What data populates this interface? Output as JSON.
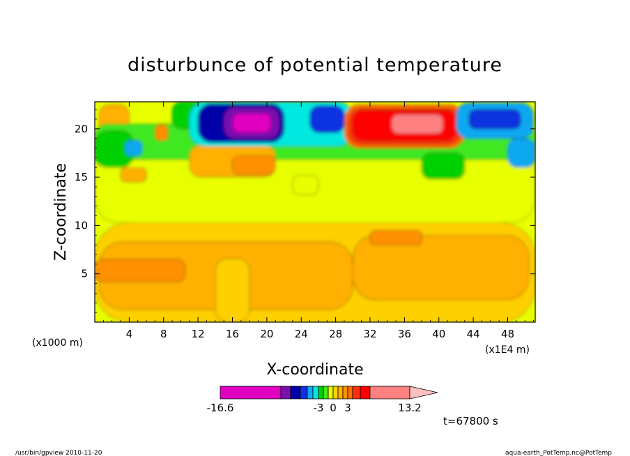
{
  "chart_data": {
    "type": "heatmap",
    "title": "disturbunce of potential temperature",
    "xlabel": "X-coordinate",
    "ylabel": "Z-coordinate",
    "x_unit_note": "(x1000 m)",
    "x_scale_note": "(x1E4 m)",
    "xlim": [
      0,
      51.2
    ],
    "ylim": [
      0,
      22.8
    ],
    "xticks": [
      4,
      8,
      12,
      16,
      20,
      24,
      28,
      32,
      36,
      40,
      44,
      48
    ],
    "yticks": [
      5,
      10,
      15,
      20
    ],
    "time_label": "t=67800 s",
    "colorbar": {
      "levels": [
        -16.6,
        -10.6,
        -8.6,
        -6.6,
        -5,
        -4,
        -3,
        -2,
        -1,
        0,
        1,
        2,
        3,
        4,
        5,
        7,
        13.2
      ],
      "colors": [
        "#e000c0",
        "#7a10b0",
        "#0000a8",
        "#1030e0",
        "#10a8f0",
        "#00e8e0",
        "#00d000",
        "#40e820",
        "#e8ff00",
        "#ffd000",
        "#ffb000",
        "#ff9000",
        "#ff7000",
        "#ff3010",
        "#ff0000",
        "#ff8080"
      ],
      "tick_labels": [
        {
          "value": -16.6,
          "text": "-16.6"
        },
        {
          "value": -3,
          "text": "-3"
        },
        {
          "value": 0,
          "text": "0"
        },
        {
          "value": 3,
          "text": "3"
        },
        {
          "value": 13.2,
          "text": "13.2"
        }
      ],
      "extend": "max",
      "extend_color": "#ffc0c0"
    },
    "field_regions": [
      {
        "v": 0.5,
        "x": [
          0,
          51.2
        ],
        "y": [
          0,
          10.3
        ]
      },
      {
        "v": 1.5,
        "x": [
          0.5,
          30
        ],
        "y": [
          1.3,
          8.3
        ]
      },
      {
        "v": 1.5,
        "x": [
          30,
          50.5
        ],
        "y": [
          2.3,
          9
        ]
      },
      {
        "v": 2.5,
        "x": [
          0,
          10.5
        ],
        "y": [
          4.2,
          6.5
        ]
      },
      {
        "v": 0.5,
        "x": [
          14,
          18
        ],
        "y": [
          0,
          6.6
        ]
      },
      {
        "v": -0.5,
        "x": [
          0,
          51.2
        ],
        "y": [
          10.3,
          17.5
        ]
      },
      {
        "v": 1.5,
        "x": [
          3,
          6
        ],
        "y": [
          14.5,
          16
        ]
      },
      {
        "v": 1.5,
        "x": [
          0.5,
          4
        ],
        "y": [
          19.5,
          22.5
        ]
      },
      {
        "v": -1.5,
        "x": [
          0,
          51.2
        ],
        "y": [
          16.8,
          20.5
        ]
      },
      {
        "v": -2.5,
        "x": [
          0,
          4.5
        ],
        "y": [
          16,
          19.8
        ]
      },
      {
        "v": -4.5,
        "x": [
          3.5,
          5.5
        ],
        "y": [
          17.2,
          18.8
        ]
      },
      {
        "v": 2.5,
        "x": [
          7,
          8.5
        ],
        "y": [
          18.8,
          20.4
        ]
      },
      {
        "v": 1.5,
        "x": [
          11,
          21
        ],
        "y": [
          15,
          18.3
        ]
      },
      {
        "v": 2.5,
        "x": [
          16,
          21
        ],
        "y": [
          15.3,
          17.2
        ]
      },
      {
        "v": -0.5,
        "x": [
          23,
          26
        ],
        "y": [
          13.2,
          15.2
        ]
      },
      {
        "v": -2.5,
        "x": [
          9,
          17
        ],
        "y": [
          20,
          22.8
        ]
      },
      {
        "v": -3.5,
        "x": [
          11,
          30
        ],
        "y": [
          18.2,
          22.8
        ]
      },
      {
        "v": -7.5,
        "x": [
          12,
          22
        ],
        "y": [
          18.6,
          22.6
        ]
      },
      {
        "v": -9.5,
        "x": [
          15,
          21.5
        ],
        "y": [
          19,
          22.2
        ]
      },
      {
        "v": -12,
        "x": [
          16,
          20.5
        ],
        "y": [
          19.6,
          21.6
        ]
      },
      {
        "v": -6,
        "x": [
          25,
          29
        ],
        "y": [
          19.6,
          22.4
        ]
      },
      {
        "v": 3.5,
        "x": [
          29,
          43
        ],
        "y": [
          18,
          22.5
        ]
      },
      {
        "v": 4.5,
        "x": [
          29.5,
          42.5
        ],
        "y": [
          18.4,
          22.1
        ]
      },
      {
        "v": 5.5,
        "x": [
          30,
          42
        ],
        "y": [
          18.8,
          21.9
        ]
      },
      {
        "v": 9,
        "x": [
          34.5,
          40.5
        ],
        "y": [
          19.5,
          21.5
        ]
      },
      {
        "v": -4.5,
        "x": [
          42,
          51
        ],
        "y": [
          19,
          22.7
        ]
      },
      {
        "v": -6,
        "x": [
          43.5,
          49.5
        ],
        "y": [
          20,
          22
        ]
      },
      {
        "v": -2.5,
        "x": [
          38,
          43
        ],
        "y": [
          14.8,
          17.5
        ]
      },
      {
        "v": -4.5,
        "x": [
          48,
          51.2
        ],
        "y": [
          16,
          19
        ]
      },
      {
        "v": 2.5,
        "x": [
          32,
          38
        ],
        "y": [
          8,
          9.5
        ]
      }
    ]
  },
  "footer": {
    "left": "/usr/bin/gpview   2010-11-20",
    "right": "aqua-earth_PotTemp.nc@PotTemp"
  }
}
